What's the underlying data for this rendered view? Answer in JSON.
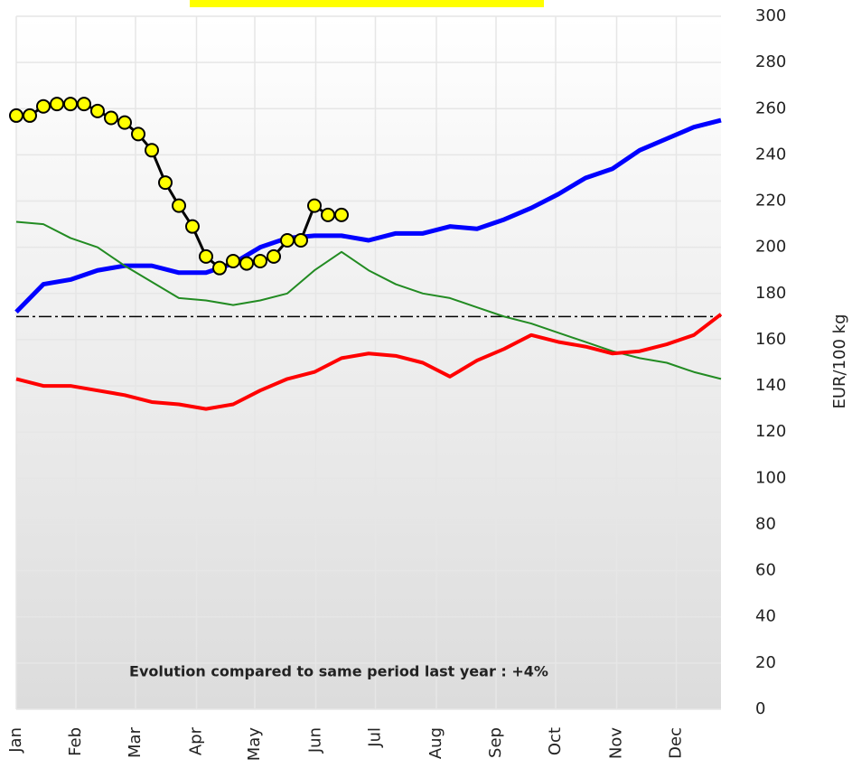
{
  "chart_data": {
    "type": "line",
    "y_label": "EUR/100 kg",
    "annotation": "Evolution compared to same period last year : +4%",
    "annotation_color": "#ff2020",
    "reference_line": 170,
    "xlim": [
      0,
      52
    ],
    "xticks": [
      {
        "value": 0,
        "label": "Jan"
      },
      {
        "value": 4.4,
        "label": "Feb"
      },
      {
        "value": 8.8,
        "label": "Mar"
      },
      {
        "value": 13.3,
        "label": "Apr"
      },
      {
        "value": 17.6,
        "label": "May"
      },
      {
        "value": 22.1,
        "label": "Jun"
      },
      {
        "value": 26.5,
        "label": "Jul"
      },
      {
        "value": 31,
        "label": "Aug"
      },
      {
        "value": 35.4,
        "label": "Sep"
      },
      {
        "value": 39.8,
        "label": "Oct"
      },
      {
        "value": 44.3,
        "label": "Nov"
      },
      {
        "value": 48.7,
        "label": "Dec"
      }
    ],
    "ylim": [
      0,
      300
    ],
    "yticks": [
      0,
      20,
      40,
      60,
      80,
      100,
      120,
      140,
      160,
      180,
      200,
      220,
      240,
      260,
      280,
      300
    ],
    "grid": true,
    "series": [
      {
        "color": "#0000ff",
        "width": 5,
        "x": [
          0,
          2,
          4,
          6,
          8,
          10,
          12,
          14,
          16,
          18,
          20,
          22,
          24,
          26,
          28,
          30,
          32,
          34,
          36,
          38,
          40,
          42,
          44,
          46,
          48,
          50,
          52
        ],
        "values": [
          172,
          184,
          186,
          190,
          192,
          192,
          189,
          189,
          193,
          200,
          204,
          205,
          205,
          203,
          206,
          206,
          209,
          208,
          212,
          217,
          223,
          230,
          234,
          242,
          247,
          252,
          255
        ]
      },
      {
        "color": "#228b22",
        "width": 2,
        "x": [
          0,
          2,
          4,
          6,
          8,
          10,
          12,
          14,
          16,
          18,
          20,
          22,
          24,
          26,
          28,
          30,
          32,
          34,
          36,
          38,
          40,
          42,
          44,
          46,
          48,
          50,
          52
        ],
        "values": [
          211,
          210,
          204,
          200,
          192,
          185,
          178,
          177,
          175,
          177,
          180,
          190,
          198,
          190,
          184,
          180,
          178,
          174,
          170,
          167,
          163,
          159,
          155,
          152,
          150,
          146,
          143
        ]
      },
      {
        "color": "#ff0000",
        "width": 4,
        "x": [
          0,
          2,
          4,
          6,
          8,
          10,
          12,
          14,
          16,
          18,
          20,
          22,
          24,
          26,
          28,
          30,
          32,
          34,
          36,
          38,
          40,
          42,
          44,
          46,
          48,
          50,
          52
        ],
        "values": [
          143,
          140,
          140,
          138,
          136,
          133,
          132,
          130,
          132,
          138,
          143,
          146,
          152,
          154,
          153,
          150,
          144,
          151,
          156,
          162,
          159,
          157,
          154,
          155,
          158,
          162,
          171
        ]
      },
      {
        "color": "#000000",
        "width": 3,
        "marker": "circle",
        "marker_color": "#ffff00",
        "x": [
          0,
          1,
          2,
          3,
          4,
          5,
          6,
          7,
          8,
          9,
          10,
          11,
          12,
          13,
          14,
          15,
          16,
          17,
          18,
          19,
          20,
          21,
          22,
          23,
          24
        ],
        "values": [
          257,
          257,
          261,
          262,
          262,
          262,
          259,
          256,
          254,
          249,
          242,
          228,
          218,
          209,
          196,
          191,
          194,
          193,
          194,
          196,
          203,
          203,
          218,
          214,
          214
        ]
      }
    ]
  }
}
